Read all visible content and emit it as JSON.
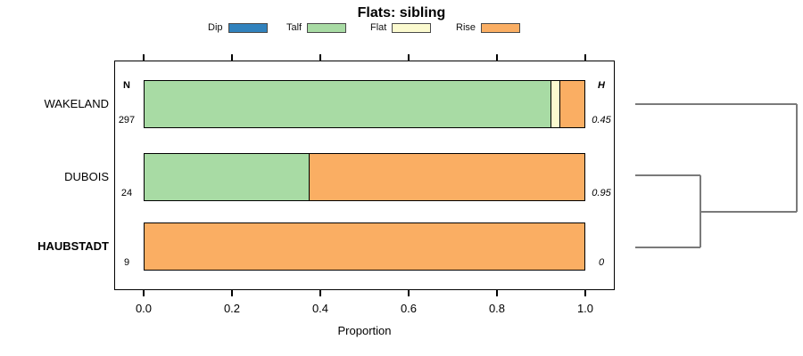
{
  "title": "Flats: sibling",
  "chart_data": {
    "type": "bar",
    "orientation": "horizontal",
    "stacked": true,
    "title": "Flats: sibling",
    "xlabel": "Proportion",
    "xlim": [
      0,
      1
    ],
    "xticks": [
      "0.0",
      "0.2",
      "0.4",
      "0.6",
      "0.8",
      "1.0"
    ],
    "grid": false,
    "legend_position": "top",
    "n_header": "N",
    "h_header": "H",
    "legend": [
      {
        "label": "Dip",
        "color": "#3182BD"
      },
      {
        "label": "Talf",
        "color": "#A8DBA4"
      },
      {
        "label": "Flat",
        "color": "#FBFACF"
      },
      {
        "label": "Rise",
        "color": "#FAAE63"
      }
    ],
    "categories": [
      "WAKELAND",
      "DUBOIS",
      "HAUBSTADT"
    ],
    "rows": [
      {
        "label": "WAKELAND",
        "bold": false,
        "n": "297",
        "h": "0.45",
        "segments": [
          {
            "name": "Talf",
            "value": 0.925
          },
          {
            "name": "Flat",
            "value": 0.02
          },
          {
            "name": "Rise",
            "value": 0.055
          }
        ]
      },
      {
        "label": "DUBOIS",
        "bold": false,
        "n": "24",
        "h": "0.95",
        "segments": [
          {
            "name": "Talf",
            "value": 0.375
          },
          {
            "name": "Rise",
            "value": 0.625
          }
        ]
      },
      {
        "label": "HAUBSTADT",
        "bold": true,
        "n": "9",
        "h": "0",
        "segments": [
          {
            "name": "Rise",
            "value": 1.0
          }
        ]
      }
    ],
    "dendrogram": {
      "color": "#7a7a7a",
      "stroke_width": 2,
      "segments": [
        [
          712,
          117,
          893,
          117
        ],
        [
          893,
          117,
          893,
          238
        ],
        [
          785,
          238,
          893,
          238
        ],
        [
          712,
          197,
          785,
          197
        ],
        [
          712,
          278,
          785,
          278
        ],
        [
          785,
          197,
          785,
          278
        ]
      ]
    }
  }
}
